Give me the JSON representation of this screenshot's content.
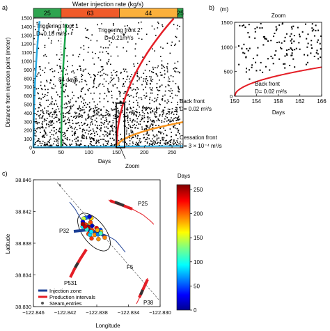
{
  "chart_data": [
    {
      "id": "a",
      "type": "scatter",
      "panel_label": "a)",
      "title": "Water injection rate (kg/s)",
      "xlabel": "Days",
      "ylabel": "Distance from injection point (meter)",
      "xlim": [
        0,
        270
      ],
      "ylim": [
        0,
        1500
      ],
      "xticks": [
        0,
        50,
        100,
        150,
        200,
        250
      ],
      "yticks": [
        0,
        100,
        200,
        300,
        400,
        500,
        600,
        700,
        800,
        900,
        1000,
        1100,
        1200,
        1300,
        1400,
        1500
      ],
      "grid": false,
      "injection_rate_bands": [
        {
          "label": "25",
          "x0": 0,
          "x1": 50,
          "color": "#2ea44f"
        },
        {
          "label": "63",
          "x0": 50,
          "x1": 155,
          "color": "#f05a28"
        },
        {
          "label": "44",
          "x0": 155,
          "x1": 260,
          "color": "#fbb03b"
        },
        {
          "label": "25",
          "x0": 260,
          "x1": 270,
          "color": "#2ea44f"
        }
      ],
      "fronts": [
        {
          "label_lines": [
            "Triggering front 1",
            "D=0.18 m²/s"
          ],
          "color": "#29abe2",
          "x0": 0,
          "x1": 70,
          "D": 0.18
        },
        {
          "label_lines": [
            "Triggering front 2",
            "D=0.21m²/s"
          ],
          "color": "#1aa64a",
          "x0": 50,
          "x1": 118,
          "D": 0.21
        },
        {
          "label_lines": [
            "Back front",
            "D= 0.02 m²/s"
          ],
          "color": "#e41e26",
          "x0": 150,
          "x1": 270,
          "D": 0.02
        },
        {
          "label_lines": [
            "Cessation front",
            "D= 3 × 10⁻⁴ m²/s"
          ],
          "color": "#f7941d",
          "x0": 150,
          "x1": 270,
          "D": 0.0003
        }
      ],
      "annotations": [
        "84 days",
        "Zoom"
      ],
      "zoom_box": {
        "x": [
          150,
          165
        ],
        "y": [
          0,
          470
        ]
      }
    },
    {
      "id": "b",
      "type": "scatter",
      "panel_label": "b)",
      "title": "Zoom",
      "unit_label": "(m)",
      "xlabel": "Days",
      "xlim": [
        150,
        166
      ],
      "ylim": [
        0,
        1500
      ],
      "xticks": [
        150,
        154,
        158,
        162,
        166
      ],
      "yticks": [
        0,
        500,
        1000,
        1500
      ],
      "curve": {
        "label_lines": [
          "Back front",
          "D= 0.02 m²/s"
        ],
        "color": "#e41e26",
        "D": 0.02,
        "t0": 150
      }
    },
    {
      "id": "c",
      "type": "map",
      "panel_label": "c)",
      "xlabel": "Longitude",
      "ylabel": "Latitude",
      "xlim": [
        -122.846,
        -122.83
      ],
      "ylim": [
        38.83,
        38.846
      ],
      "xticks": [
        -122.846,
        -122.842,
        -122.838,
        -122.834,
        -122.83
      ],
      "xtick_labels": [
        "−122.846",
        "−122.842",
        "−122.838",
        "−122.834",
        "−122.830"
      ],
      "yticks": [
        38.83,
        38.834,
        38.838,
        38.842,
        38.846
      ],
      "ytick_labels": [
        "38.830",
        "38.834",
        "38.838",
        "38.842",
        "38.846"
      ],
      "well_labels": [
        "P25",
        "P32",
        "P531",
        "P38",
        "F5"
      ],
      "legend": [
        "Injection zone",
        "Production intervals",
        "Steam entries"
      ],
      "legend_colors": [
        "#1b3f95",
        "#e41e26",
        "#555555"
      ],
      "colorbar": {
        "title": "Days",
        "range": [
          0,
          260
        ],
        "ticks": [
          0,
          50,
          100,
          150,
          200,
          250
        ]
      }
    }
  ]
}
